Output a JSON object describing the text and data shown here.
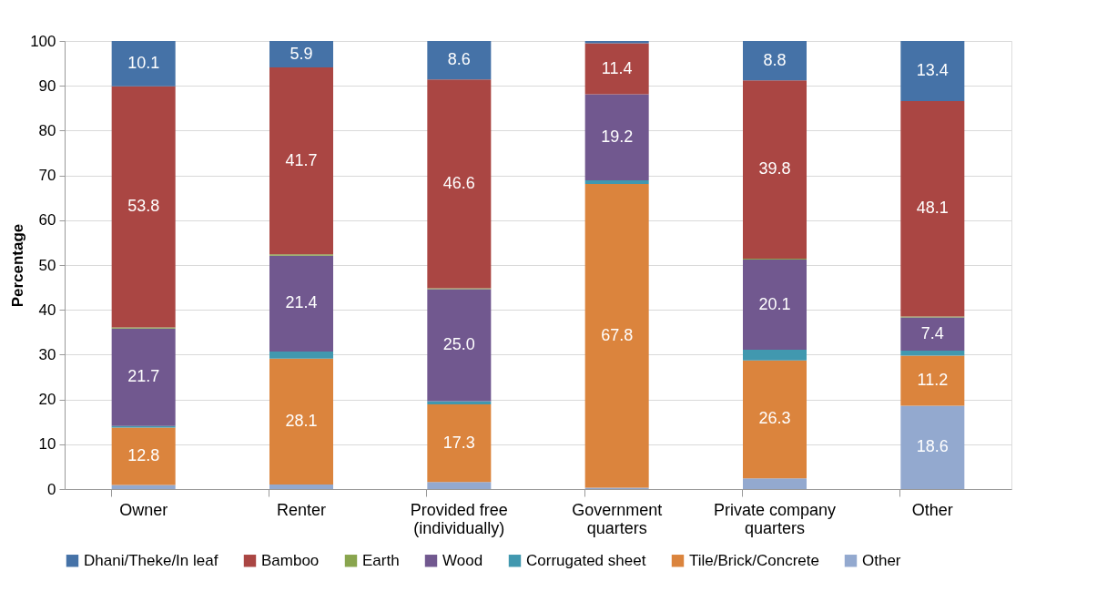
{
  "chart_data": {
    "type": "bar",
    "stacked": true,
    "ylabel": "Percentage",
    "categories": [
      "Owner",
      "Renter",
      "Provided free (individually)",
      "Government quarters",
      "Private company quarters",
      "Other"
    ],
    "ylim": [
      0,
      100
    ],
    "yticks": [
      0,
      10,
      20,
      30,
      40,
      50,
      60,
      70,
      80,
      90,
      100
    ],
    "grid": "y",
    "legend": "bottom",
    "series": [
      {
        "name": "Other",
        "color": "#93a9cf",
        "values": [
          0.9,
          1.0,
          1.6,
          0.3,
          2.4,
          18.6
        ],
        "value_labels": [
          null,
          null,
          null,
          null,
          null,
          "18.6"
        ]
      },
      {
        "name": "Tile/Brick/Concrete",
        "color": "#db843d",
        "values": [
          12.8,
          28.1,
          17.3,
          67.8,
          26.3,
          11.2
        ],
        "value_labels": [
          "12.8",
          "28.1",
          "17.3",
          "67.8",
          "26.3",
          "11.2"
        ]
      },
      {
        "name": "Corrugated sheet",
        "color": "#4198af",
        "values": [
          0.4,
          1.6,
          0.7,
          0.8,
          2.4,
          1.1
        ],
        "value_labels": [
          null,
          null,
          null,
          null,
          null,
          null
        ]
      },
      {
        "name": "Wood",
        "color": "#71588f",
        "values": [
          21.7,
          21.4,
          25.0,
          19.2,
          20.1,
          7.4
        ],
        "value_labels": [
          "21.7",
          "21.4",
          "25.0",
          "19.2",
          "20.1",
          "7.4"
        ]
      },
      {
        "name": "Earth",
        "color": "#89a54e",
        "values": [
          0.3,
          0.3,
          0.2,
          0,
          0.2,
          0.2
        ],
        "value_labels": [
          null,
          null,
          null,
          null,
          null,
          null
        ]
      },
      {
        "name": "Bamboo",
        "color": "#aa4643",
        "values": [
          53.8,
          41.7,
          46.6,
          11.4,
          39.8,
          48.1
        ],
        "value_labels": [
          "53.8",
          "41.7",
          "46.6",
          "11.4",
          "39.8",
          "48.1"
        ]
      },
      {
        "name": "Dhani/Theke/In leaf",
        "color": "#4572a7",
        "values": [
          10.1,
          5.9,
          8.6,
          0.5,
          8.8,
          13.4
        ],
        "value_labels": [
          "10.1",
          "5.9",
          "8.6",
          null,
          "8.8",
          "13.4"
        ]
      }
    ]
  }
}
